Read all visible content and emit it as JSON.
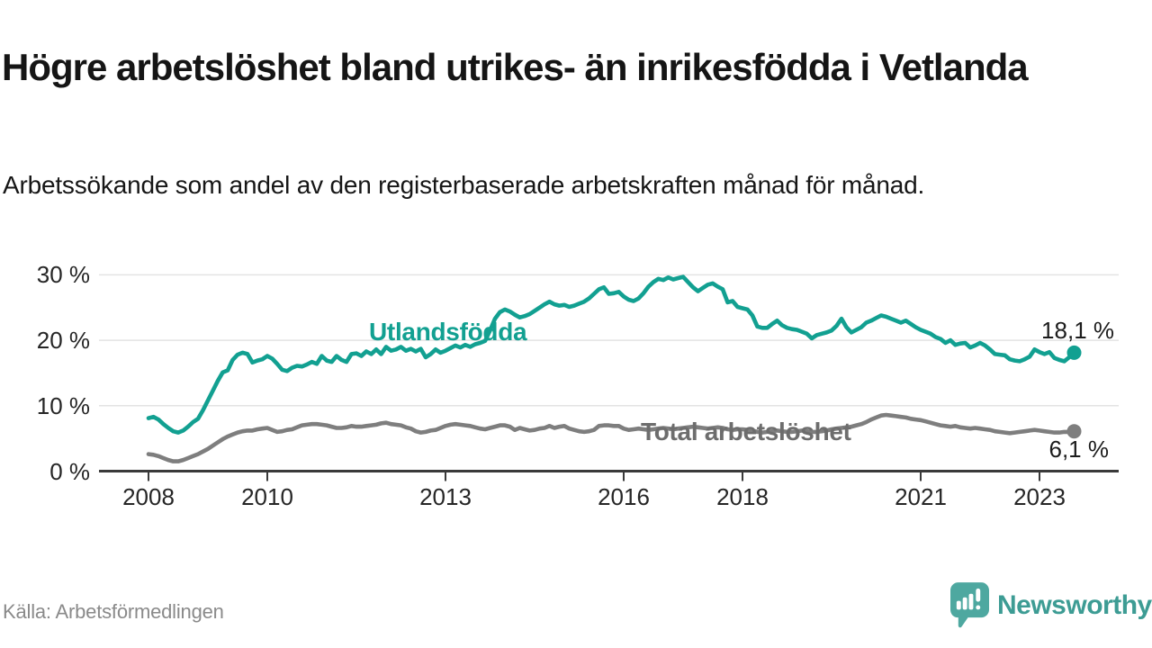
{
  "header": {
    "title": "Högre arbetslöshet bland utrikes- än inrikesfödda i Vetlanda",
    "subtitle": "Arbetssökande som andel av den registerbaserade arbetskraften månad för månad."
  },
  "footer": {
    "source": "Källa: Arbetsförmedlingen",
    "brand": "Newsworthy"
  },
  "colors": {
    "series_foreign_born": "#12a091",
    "series_total": "#7e7e7e",
    "series_total_label": "#6d6d6d",
    "grid": "#e3e3e3",
    "axis": "#3a3a3a",
    "tick_text": "#262626",
    "end_label_text": "#1c1c1c",
    "source_text": "#8a8a8a",
    "logo_icon": "#4ea8a0",
    "logo_text": "#3d9c94"
  },
  "chart_data": {
    "type": "line",
    "title": "Högre arbetslöshet bland utrikes- än inrikesfödda i Vetlanda",
    "subtitle": "Arbetssökande som andel av den registerbaserade arbetskraften månad för månad.",
    "frequency": "monthly",
    "x_start": "2008-01",
    "x_end": "2023-08",
    "ylim": [
      0,
      31
    ],
    "grid": "horizontal",
    "legend_position": "inline-labels",
    "y_ticks": [
      {
        "label": "0 %",
        "value": 0
      },
      {
        "label": "10 %",
        "value": 10
      },
      {
        "label": "20 %",
        "value": 20
      },
      {
        "label": "30 %",
        "value": 30
      }
    ],
    "x_ticks": [
      {
        "label": "2008",
        "month_index": 0
      },
      {
        "label": "2010",
        "month_index": 24
      },
      {
        "label": "2013",
        "month_index": 60
      },
      {
        "label": "2016",
        "month_index": 96
      },
      {
        "label": "2018",
        "month_index": 120
      },
      {
        "label": "2021",
        "month_index": 156
      },
      {
        "label": "2023",
        "month_index": 180
      }
    ],
    "series": [
      {
        "name": "Utlandsfödda",
        "color": "#12a091",
        "end_value": 18.1,
        "end_label": "18,1 %",
        "values": [
          8.1,
          8.3,
          7.9,
          7.2,
          6.6,
          6.1,
          5.9,
          6.2,
          6.8,
          7.5,
          8.0,
          9.3,
          10.8,
          12.3,
          13.8,
          15.1,
          15.4,
          17.0,
          17.8,
          18.1,
          17.9,
          16.6,
          16.9,
          17.1,
          17.6,
          17.2,
          16.4,
          15.5,
          15.3,
          15.8,
          16.1,
          16.0,
          16.3,
          16.7,
          16.4,
          17.6,
          16.9,
          16.7,
          17.6,
          17.0,
          16.7,
          17.9,
          18.0,
          17.6,
          18.3,
          17.9,
          18.6,
          17.9,
          19.0,
          18.4,
          18.6,
          19.0,
          18.4,
          18.7,
          18.3,
          18.7,
          17.4,
          17.9,
          18.6,
          18.1,
          18.4,
          18.8,
          19.2,
          18.9,
          19.3,
          19.0,
          19.4,
          19.6,
          19.9,
          21.5,
          23.3,
          24.3,
          24.7,
          24.4,
          23.9,
          23.5,
          23.7,
          24.0,
          24.5,
          25.0,
          25.5,
          25.9,
          25.5,
          25.3,
          25.4,
          25.1,
          25.3,
          25.6,
          25.9,
          26.4,
          27.1,
          27.8,
          28.1,
          27.1,
          27.2,
          27.4,
          26.7,
          26.2,
          26.0,
          26.4,
          27.2,
          28.2,
          28.9,
          29.4,
          29.2,
          29.6,
          29.3,
          29.5,
          29.7,
          28.9,
          28.1,
          27.5,
          28.0,
          28.5,
          28.7,
          28.2,
          27.8,
          25.8,
          26.0,
          25.1,
          24.9,
          24.7,
          23.8,
          22.1,
          21.9,
          21.9,
          22.5,
          23.0,
          22.3,
          21.9,
          21.7,
          21.6,
          21.3,
          21.0,
          20.3,
          20.8,
          21.0,
          21.2,
          21.5,
          22.2,
          23.3,
          22.0,
          21.2,
          21.6,
          22.0,
          22.7,
          23.0,
          23.4,
          23.8,
          23.6,
          23.3,
          23.0,
          22.7,
          23.0,
          22.5,
          22.0,
          21.6,
          21.3,
          21.0,
          20.5,
          20.2,
          19.6,
          20.0,
          19.3,
          19.5,
          19.6,
          18.9,
          19.2,
          19.6,
          19.2,
          18.6,
          17.9,
          17.8,
          17.7,
          17.1,
          16.9,
          16.8,
          17.1,
          17.5,
          18.6,
          18.2,
          17.9,
          18.2,
          17.3,
          17.0,
          16.8,
          17.4,
          18.1
        ]
      },
      {
        "name": "Total arbetslöshet",
        "color": "#7e7e7e",
        "end_value": 6.1,
        "end_label": "6,1 %",
        "values": [
          2.6,
          2.5,
          2.3,
          2.0,
          1.7,
          1.5,
          1.5,
          1.7,
          2.0,
          2.3,
          2.6,
          3.0,
          3.4,
          3.9,
          4.4,
          4.9,
          5.3,
          5.6,
          5.9,
          6.1,
          6.2,
          6.2,
          6.4,
          6.5,
          6.6,
          6.3,
          6.0,
          6.1,
          6.3,
          6.4,
          6.7,
          7.0,
          7.1,
          7.2,
          7.2,
          7.1,
          7.0,
          6.8,
          6.6,
          6.6,
          6.7,
          6.9,
          6.8,
          6.8,
          6.9,
          7.0,
          7.1,
          7.3,
          7.4,
          7.2,
          7.1,
          7.0,
          6.7,
          6.5,
          6.1,
          5.9,
          6.0,
          6.2,
          6.3,
          6.6,
          6.9,
          7.1,
          7.2,
          7.1,
          7.0,
          6.9,
          6.7,
          6.5,
          6.4,
          6.6,
          6.8,
          7.0,
          7.0,
          6.8,
          6.3,
          6.6,
          6.4,
          6.2,
          6.3,
          6.5,
          6.6,
          6.9,
          6.6,
          6.8,
          6.9,
          6.5,
          6.3,
          6.1,
          6.0,
          6.1,
          6.3,
          6.9,
          7.0,
          7.0,
          6.9,
          6.9,
          6.5,
          6.3,
          6.4,
          6.5,
          6.4,
          6.3,
          6.4,
          6.5,
          6.6,
          6.5,
          6.4,
          6.5,
          6.6,
          6.7,
          6.8,
          6.7,
          6.6,
          6.5,
          6.6,
          6.7,
          6.6,
          6.4,
          6.3,
          6.4,
          6.4,
          6.3,
          6.2,
          6.0,
          5.9,
          6.0,
          6.1,
          6.2,
          6.1,
          6.0,
          6.0,
          6.1,
          6.2,
          6.1,
          6.0,
          6.0,
          6.1,
          6.2,
          6.4,
          6.5,
          6.6,
          6.7,
          6.8,
          7.0,
          7.2,
          7.5,
          7.9,
          8.2,
          8.5,
          8.6,
          8.5,
          8.4,
          8.3,
          8.2,
          8.0,
          7.9,
          7.8,
          7.6,
          7.4,
          7.2,
          7.0,
          6.9,
          6.8,
          6.9,
          6.7,
          6.6,
          6.5,
          6.6,
          6.5,
          6.4,
          6.3,
          6.1,
          6.0,
          5.9,
          5.8,
          5.9,
          6.0,
          6.1,
          6.2,
          6.3,
          6.2,
          6.1,
          6.0,
          5.9,
          5.9,
          6.0,
          6.0,
          6.1
        ]
      }
    ]
  }
}
